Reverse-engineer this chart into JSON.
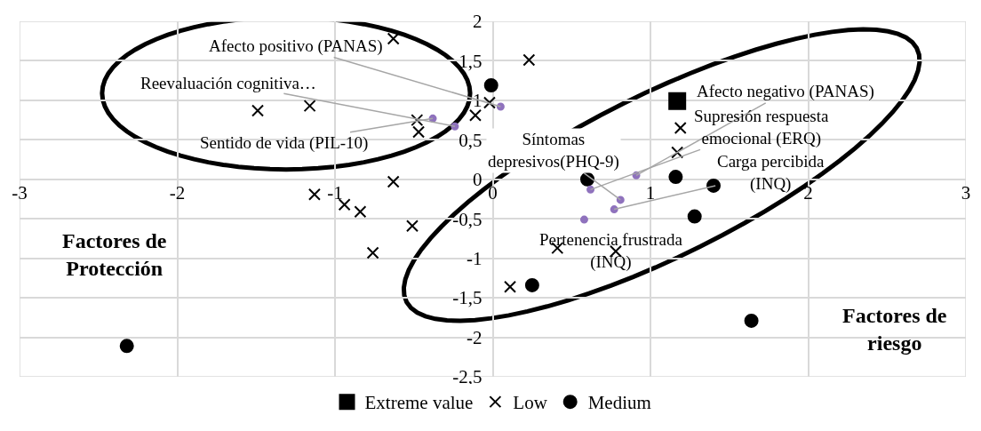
{
  "chart_data": {
    "type": "scatter",
    "xlim": [
      -3,
      3
    ],
    "ylim": [
      -2.5,
      2
    ],
    "xticks": [
      -3,
      -2,
      -1,
      0,
      1,
      2,
      3
    ],
    "yticks": [
      {
        "value": -2.5,
        "label": "-2,5"
      },
      -2,
      {
        "value": -1.5,
        "label": "-1,5"
      },
      -1,
      {
        "value": -0.5,
        "label": "-0,5"
      },
      0,
      {
        "value": 0.5,
        "label": "0,5"
      },
      1,
      {
        "value": 1.5,
        "label": "1,5"
      },
      2
    ],
    "grid": true,
    "legend": "bottom",
    "series": [
      {
        "name": "Extreme value",
        "color": "#000000",
        "marker": "square",
        "x": [
          1.17
        ],
        "values": [
          0.99
        ]
      },
      {
        "name": "Low",
        "color": "#000000",
        "marker": "cross",
        "x": [
          -0.63,
          0.23,
          -1.49,
          -1.16,
          -0.48,
          -0.47,
          -0.11,
          -0.02,
          -0.63,
          -1.13,
          -0.94,
          -0.84,
          -0.51,
          -0.76,
          1.19,
          1.17,
          0.41,
          0.78,
          0.11
        ],
        "values": [
          1.78,
          1.51,
          0.87,
          0.93,
          0.75,
          0.6,
          0.81,
          0.97,
          -0.03,
          -0.19,
          -0.32,
          -0.41,
          -0.59,
          -0.93,
          0.65,
          0.34,
          -0.87,
          -0.91,
          -1.36
        ]
      },
      {
        "name": "Medium",
        "color": "#000000",
        "marker": "circle",
        "x": [
          -0.01,
          0.6,
          1.16,
          1.4,
          1.28,
          0.25,
          1.64,
          -2.32
        ],
        "values": [
          1.19,
          0.0,
          0.03,
          -0.08,
          -0.47,
          -1.34,
          -1.79,
          -2.11
        ]
      },
      {
        "color": "#8f72bd",
        "marker": "circle",
        "x": [
          0.05,
          -0.24,
          -0.38,
          0.91,
          0.62,
          0.81,
          0.77,
          0.58
        ],
        "values": [
          0.92,
          0.67,
          0.77,
          0.05,
          -0.13,
          -0.26,
          -0.38,
          -0.51
        ]
      }
    ],
    "annotations": [
      {
        "text": "Afecto positivo (PANAS)",
        "x": 0.05,
        "y": 0.92
      },
      {
        "text": "Reevaluación cognitiva…",
        "x": -0.24,
        "y": 0.67
      },
      {
        "text": "Sentido de vida (PIL-10)",
        "x": -0.38,
        "y": 0.77
      },
      {
        "text": "Afecto negativo (PANAS)",
        "x": 0.91,
        "y": 0.05
      },
      {
        "text": "Supresión respuesta\nemocional (ERQ)",
        "x": 0.62,
        "y": -0.13
      },
      {
        "text": "Síntomas\ndepresivos(PHQ-9)",
        "x": 0.81,
        "y": -0.26
      },
      {
        "text": "Carga percibida\n(INQ)",
        "x": 0.77,
        "y": -0.38
      },
      {
        "text": "Pertenencia frustrada\n(INQ)",
        "x": 0.58,
        "y": -0.51
      },
      "Factores de\nProtección",
      "Factores de\nriesgo"
    ]
  }
}
